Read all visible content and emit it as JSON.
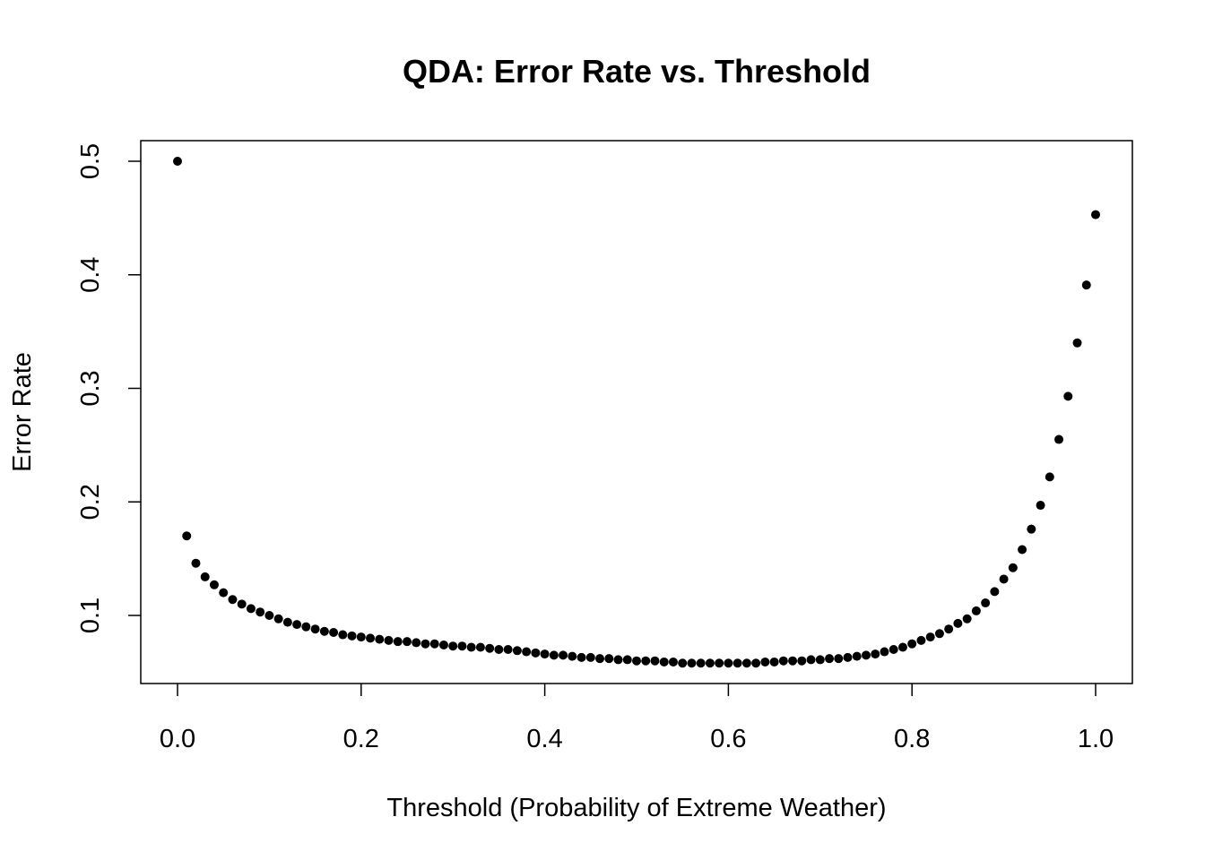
{
  "chart_data": {
    "type": "scatter",
    "title": "QDA: Error Rate vs. Threshold",
    "xlabel": "Threshold (Probability of Extreme Weather)",
    "ylabel": "Error Rate",
    "xlim": [
      0.0,
      1.0
    ],
    "ylim": [
      0.04,
      0.51
    ],
    "x_ticks": [
      0.0,
      0.2,
      0.4,
      0.6,
      0.8,
      1.0
    ],
    "x_tick_labels": [
      "0.0",
      "0.2",
      "0.4",
      "0.6",
      "0.8",
      "1.0"
    ],
    "y_ticks": [
      0.1,
      0.2,
      0.3,
      0.4,
      0.5
    ],
    "y_tick_labels": [
      "0.1",
      "0.2",
      "0.3",
      "0.4",
      "0.5"
    ],
    "grid": false,
    "legend": "none",
    "marker_color": "#000000",
    "x": [
      0.0,
      0.01,
      0.02,
      0.03,
      0.04,
      0.05,
      0.06,
      0.07,
      0.08,
      0.09,
      0.1,
      0.11,
      0.12,
      0.13,
      0.14,
      0.15,
      0.16,
      0.17,
      0.18,
      0.19,
      0.2,
      0.21,
      0.22,
      0.23,
      0.24,
      0.25,
      0.26,
      0.27,
      0.28,
      0.29,
      0.3,
      0.31,
      0.32,
      0.33,
      0.34,
      0.35,
      0.36,
      0.37,
      0.38,
      0.39,
      0.4,
      0.41,
      0.42,
      0.43,
      0.44,
      0.45,
      0.46,
      0.47,
      0.48,
      0.49,
      0.5,
      0.51,
      0.52,
      0.53,
      0.54,
      0.55,
      0.56,
      0.57,
      0.58,
      0.59,
      0.6,
      0.61,
      0.62,
      0.63,
      0.64,
      0.65,
      0.66,
      0.67,
      0.68,
      0.69,
      0.7,
      0.71,
      0.72,
      0.73,
      0.74,
      0.75,
      0.76,
      0.77,
      0.78,
      0.79,
      0.8,
      0.81,
      0.82,
      0.83,
      0.84,
      0.85,
      0.86,
      0.87,
      0.88,
      0.89,
      0.9,
      0.91,
      0.92,
      0.93,
      0.94,
      0.95,
      0.96,
      0.97,
      0.98,
      0.99,
      1.0
    ],
    "y": [
      0.5,
      0.17,
      0.146,
      0.134,
      0.127,
      0.12,
      0.114,
      0.11,
      0.106,
      0.103,
      0.1,
      0.097,
      0.094,
      0.092,
      0.09,
      0.088,
      0.086,
      0.085,
      0.083,
      0.082,
      0.081,
      0.08,
      0.079,
      0.078,
      0.077,
      0.077,
      0.076,
      0.075,
      0.075,
      0.074,
      0.073,
      0.073,
      0.072,
      0.072,
      0.071,
      0.07,
      0.07,
      0.069,
      0.068,
      0.067,
      0.066,
      0.065,
      0.065,
      0.064,
      0.063,
      0.063,
      0.062,
      0.062,
      0.061,
      0.061,
      0.06,
      0.06,
      0.06,
      0.059,
      0.059,
      0.058,
      0.058,
      0.058,
      0.058,
      0.058,
      0.058,
      0.058,
      0.058,
      0.058,
      0.059,
      0.059,
      0.06,
      0.06,
      0.06,
      0.061,
      0.061,
      0.062,
      0.062,
      0.063,
      0.064,
      0.065,
      0.066,
      0.068,
      0.07,
      0.072,
      0.075,
      0.078,
      0.081,
      0.084,
      0.088,
      0.093,
      0.097,
      0.104,
      0.111,
      0.121,
      0.132,
      0.142,
      0.158,
      0.176,
      0.197,
      0.222,
      0.255,
      0.293,
      0.34,
      0.391,
      0.453
    ]
  }
}
